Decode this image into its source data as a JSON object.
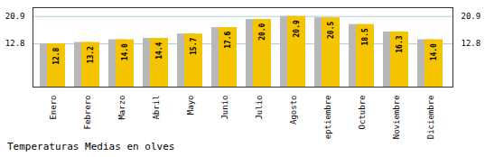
{
  "chart_data": {
    "type": "bar",
    "title": "Temperaturas Medias en olves",
    "categories": [
      "Enero",
      "Febrero",
      "Marzo",
      "Abril",
      "Mayo",
      "Junio",
      "Julio",
      "Agosto",
      "Septiembre",
      "Octubre",
      "Noviembre",
      "Diciembre"
    ],
    "series": [
      {
        "color": "#B8B8B8",
        "values": [
          12.8,
          13.2,
          14.0,
          14.4,
          15.7,
          17.6,
          20.0,
          20.9,
          20.5,
          18.5,
          16.3,
          14.0
        ]
      },
      {
        "color": "#F5C400",
        "values": [
          12.8,
          13.2,
          14.0,
          14.4,
          15.7,
          17.6,
          20.0,
          20.9,
          20.5,
          18.5,
          16.3,
          14.0
        ],
        "value_labels": [
          "12.8",
          "13.2",
          "14.0",
          "14.4",
          "15.7",
          "17.6",
          "20.0",
          "20.9",
          "20.5",
          "18.5",
          "16.3",
          "14.0"
        ]
      }
    ],
    "ylim": [
      0,
      23.5
    ],
    "yticks": [
      12.8,
      20.9
    ],
    "grid": true,
    "data_labels": true
  }
}
